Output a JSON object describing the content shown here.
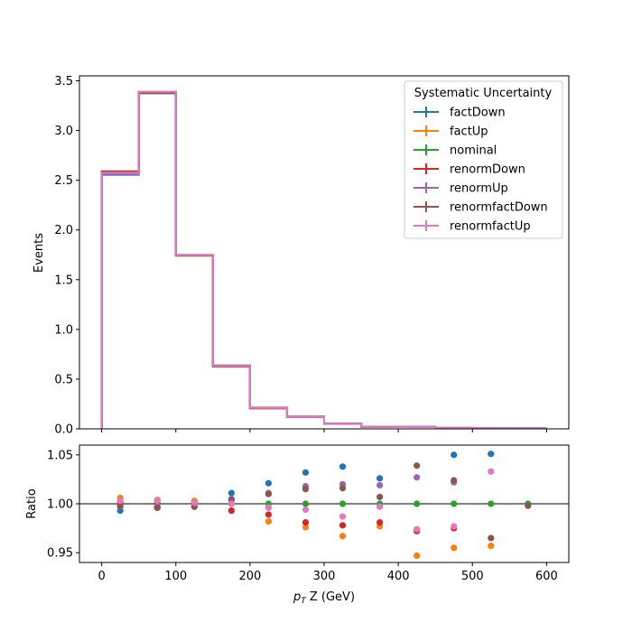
{
  "chart_data": [
    {
      "type": "line",
      "xlabel": "",
      "ylabel": "Events",
      "xlim": [
        -30,
        630
      ],
      "ylim": [
        0,
        3.55
      ],
      "x_ticks": [
        0,
        100,
        200,
        300,
        400,
        500,
        600
      ],
      "x_ticks_labeled": false,
      "y_ticks": [
        "0.0",
        "0.5",
        "1.0",
        "1.5",
        "2.0",
        "2.5",
        "3.0",
        "3.5"
      ],
      "grid": false,
      "legend_title": "Systematic Uncertainty",
      "legend_position": "top-right",
      "bin_edges": [
        0,
        50,
        100,
        150,
        200,
        250,
        300,
        350,
        400,
        450,
        500,
        550,
        600
      ],
      "series": [
        {
          "name": "factDown",
          "color": "#1f77b4",
          "values": [
            2.555,
            3.375,
            1.75,
            0.638,
            0.215,
            0.125,
            0.053,
            0.022,
            0.02,
            0.01,
            0.008,
            0.006
          ]
        },
        {
          "name": "factUp",
          "color": "#ff7f0e",
          "values": [
            2.585,
            3.39,
            1.74,
            0.625,
            0.205,
            0.118,
            0.051,
            0.021,
            0.018,
            0.009,
            0.007,
            0.005
          ]
        },
        {
          "name": "nominal",
          "color": "#2ca02c",
          "values": [
            2.57,
            3.385,
            1.745,
            0.631,
            0.21,
            0.121,
            0.052,
            0.0215,
            0.019,
            0.0095,
            0.0075,
            0.0055
          ]
        },
        {
          "name": "renormDown",
          "color": "#d62728",
          "values": [
            2.59,
            3.38,
            1.745,
            0.626,
            0.207,
            0.119,
            0.051,
            0.021,
            0.0185,
            0.0093,
            0.0073,
            0.0053
          ]
        },
        {
          "name": "renormUp",
          "color": "#9467bd",
          "values": [
            2.56,
            3.385,
            1.745,
            0.632,
            0.212,
            0.123,
            0.053,
            0.022,
            0.0195,
            0.0097,
            0.0077,
            0.0056
          ]
        },
        {
          "name": "renormfactDown",
          "color": "#8c564b",
          "values": [
            2.58,
            3.375,
            1.745,
            0.633,
            0.212,
            0.123,
            0.053,
            0.022,
            0.0197,
            0.0097,
            0.0077,
            0.0055
          ]
        },
        {
          "name": "renormfactUp",
          "color": "#e377c2",
          "values": [
            2.575,
            3.39,
            1.748,
            0.632,
            0.211,
            0.12,
            0.052,
            0.0215,
            0.0185,
            0.0093,
            0.0078,
            0.0055
          ]
        }
      ]
    },
    {
      "type": "scatter",
      "xlabel_tex": "p",
      "xlabel_sub": "T",
      "xlabel_rest": " Z (GeV)",
      "ylabel": "Ratio",
      "xlim": [
        -30,
        630
      ],
      "ylim": [
        0.94,
        1.06
      ],
      "x_ticks": [
        "0",
        "100",
        "200",
        "300",
        "400",
        "500",
        "600"
      ],
      "y_ticks": [
        "0.95",
        "1.00",
        "1.05"
      ],
      "reference_line": 1.0,
      "x": [
        25,
        75,
        125,
        175,
        225,
        275,
        325,
        375,
        425,
        475,
        525,
        575
      ],
      "series": [
        {
          "name": "factDown",
          "color": "#1f77b4",
          "values": [
            0.993,
            0.996,
            1.001,
            1.011,
            1.021,
            1.032,
            1.038,
            1.026,
            null,
            1.05,
            1.051,
            null
          ]
        },
        {
          "name": "factUp",
          "color": "#ff7f0e",
          "values": [
            1.006,
            1.004,
            1.003,
            0.993,
            0.982,
            0.976,
            0.967,
            0.977,
            0.947,
            0.955,
            0.957,
            null
          ]
        },
        {
          "name": "nominal",
          "color": "#2ca02c",
          "values": [
            1.0,
            1.0,
            1.0,
            1.0,
            1.0,
            1.0,
            1.0,
            1.0,
            1.0,
            1.0,
            1.0,
            1.0
          ]
        },
        {
          "name": "renormDown",
          "color": "#d62728",
          "values": [
            1.001,
            1.001,
            1.001,
            0.993,
            0.989,
            0.981,
            0.978,
            0.981,
            0.972,
            0.975,
            null,
            null
          ]
        },
        {
          "name": "renormUp",
          "color": "#9467bd",
          "values": [
            0.997,
            0.997,
            0.997,
            1.005,
            1.011,
            1.018,
            1.02,
            1.019,
            1.027,
            1.022,
            null,
            null
          ]
        },
        {
          "name": "renormfactDown",
          "color": "#8c564b",
          "values": [
            0.998,
            0.996,
            0.997,
            1.004,
            1.01,
            1.015,
            1.016,
            1.007,
            1.039,
            1.024,
            0.965,
            0.998
          ]
        },
        {
          "name": "renormfactUp",
          "color": "#e377c2",
          "values": [
            1.003,
            1.003,
            1.001,
            1.0,
            0.996,
            0.994,
            0.987,
            0.997,
            0.974,
            0.977,
            1.033,
            null
          ]
        }
      ]
    }
  ]
}
